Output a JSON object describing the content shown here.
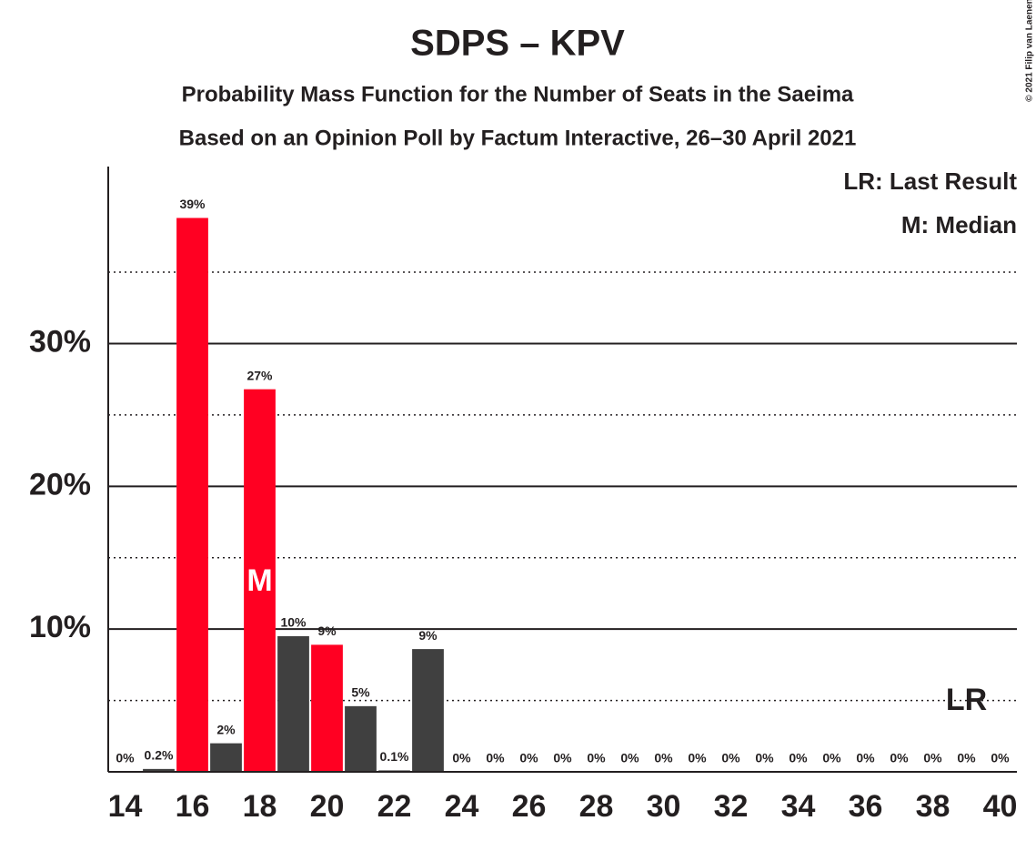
{
  "chart_data": {
    "type": "bar",
    "title": "SDPS – KPV",
    "subtitle": "Probability Mass Function for the Number of Seats in the Saeima",
    "subtitle2": "Based on an Opinion Poll by Factum Interactive, 26–30 April 2021",
    "copyright": "© 2021 Filip van Laenen",
    "x": [
      14,
      15,
      16,
      17,
      18,
      19,
      20,
      21,
      22,
      23,
      24,
      25,
      26,
      27,
      28,
      29,
      30,
      31,
      32,
      33,
      34,
      35,
      36,
      37,
      38,
      39,
      40
    ],
    "values": [
      0,
      0.2,
      38.8,
      2.0,
      26.8,
      9.5,
      8.9,
      4.6,
      0.1,
      8.6,
      0,
      0,
      0,
      0,
      0,
      0,
      0,
      0,
      0,
      0,
      0,
      0,
      0,
      0,
      0,
      0,
      0
    ],
    "value_labels": [
      "0%",
      "0.2%",
      "39%",
      "2%",
      "27%",
      "10%",
      "9%",
      "5%",
      "0.1%",
      "9%",
      "0%",
      "0%",
      "0%",
      "0%",
      "0%",
      "0%",
      "0%",
      "0%",
      "0%",
      "0%",
      "0%",
      "0%",
      "0%",
      "0%",
      "0%",
      "0%",
      "0%"
    ],
    "colors": [
      "#404040",
      "#404040",
      "#ff0022",
      "#404040",
      "#ff0022",
      "#404040",
      "#ff0022",
      "#404040",
      "#404040",
      "#404040",
      "#404040",
      "#404040",
      "#404040",
      "#404040",
      "#404040",
      "#404040",
      "#404040",
      "#404040",
      "#404040",
      "#404040",
      "#404040",
      "#404040",
      "#404040",
      "#404040",
      "#404040",
      "#404040",
      "#404040"
    ],
    "xlim": [
      13.5,
      40.5
    ],
    "xticks": [
      14,
      16,
      18,
      20,
      22,
      24,
      26,
      28,
      30,
      32,
      34,
      36,
      38,
      40
    ],
    "ylim": [
      0,
      42.4
    ],
    "yticks": [
      {
        "value": 10,
        "label": "10%"
      },
      {
        "value": 20,
        "label": "20%"
      },
      {
        "value": 30,
        "label": "30%"
      }
    ],
    "minor_gridlines": [
      5,
      15,
      25,
      35
    ],
    "grid": true,
    "median": {
      "x": 18,
      "label": "M"
    },
    "last_result": {
      "x": 39,
      "label": "LR"
    },
    "legend": [
      "LR: Last Result",
      "M: Median"
    ]
  }
}
